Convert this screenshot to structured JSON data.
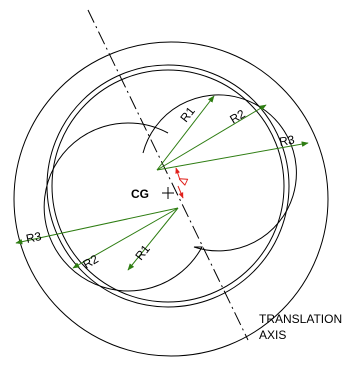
{
  "labels": {
    "cg": "CG",
    "delta": "Δ",
    "r1": "R1",
    "r2": "R2",
    "r3": "R3",
    "axis_line1": "TRANSLATION",
    "axis_line2": "AXIS"
  },
  "colors": {
    "outline": "#000000",
    "dimension": "#2e7d12",
    "delta": "#e0201b",
    "background": "#ffffff"
  }
}
